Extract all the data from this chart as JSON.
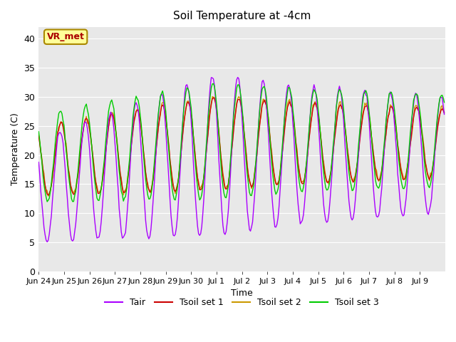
{
  "title": "Soil Temperature at -4cm",
  "xlabel": "Time",
  "ylabel": "Temperature (C)",
  "ylim": [
    0,
    42
  ],
  "yticks": [
    0,
    5,
    10,
    15,
    20,
    25,
    30,
    35,
    40
  ],
  "bg_color": "#e8e8e8",
  "legend_labels": [
    "Tair",
    "Tsoil set 1",
    "Tsoil set 2",
    "Tsoil set 3"
  ],
  "legend_colors": [
    "#aa00ff",
    "#cc0000",
    "#cc9900",
    "#00cc00"
  ],
  "annotation_text": "VR_met",
  "annotation_color": "#aa0000",
  "annotation_bg": "#ffff99",
  "x_tick_labels": [
    "Jun 24",
    "Jun 25",
    "Jun 26",
    "Jun 27",
    "Jun 28",
    "Jun 29",
    "Jun 30",
    "Jul 1",
    "Jul 2",
    "Jul 3",
    "Jul 4",
    "Jul 5",
    "Jul 6",
    "Jul 7",
    "Jul 8",
    "Jul 9"
  ],
  "x_tick_positions": [
    0,
    1,
    2,
    3,
    4,
    5,
    6,
    7,
    8,
    9,
    10,
    11,
    12,
    13,
    14,
    15
  ],
  "n_days": 16
}
